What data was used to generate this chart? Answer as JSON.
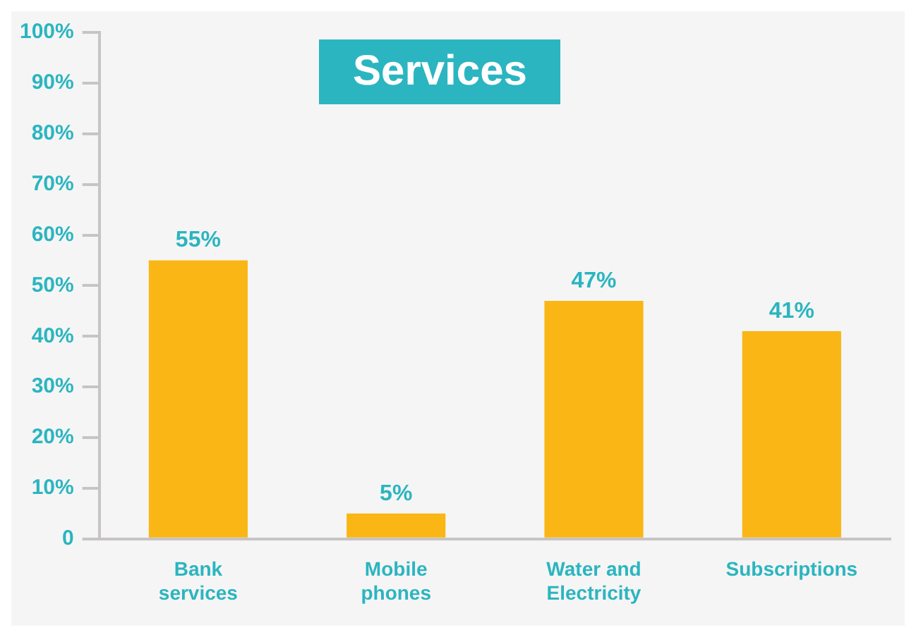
{
  "chart_data": {
    "type": "bar",
    "title": "Services",
    "categories": [
      "Bank services",
      "Mobile phones",
      "Water and Electricity",
      "Subscriptions"
    ],
    "values": [
      55,
      5,
      47,
      41
    ],
    "color": "#f9b614",
    "value_labels": [
      "55%",
      "5%",
      "47%",
      "41%"
    ],
    "ylim": [
      0,
      100
    ],
    "yticks": [
      0,
      {
        "value": 10,
        "label": "10%"
      },
      {
        "value": 20,
        "label": "20%"
      },
      {
        "value": 30,
        "label": "30%"
      },
      {
        "value": 40,
        "label": "40%"
      },
      {
        "value": 50,
        "label": "50%"
      },
      {
        "value": 60,
        "label": "60%"
      },
      {
        "value": 70,
        "label": "70%"
      },
      {
        "value": 80,
        "label": "80%"
      },
      {
        "value": 90,
        "label": "90%"
      },
      {
        "value": 100,
        "label": "100%"
      }
    ],
    "grid": false,
    "legend": false
  }
}
